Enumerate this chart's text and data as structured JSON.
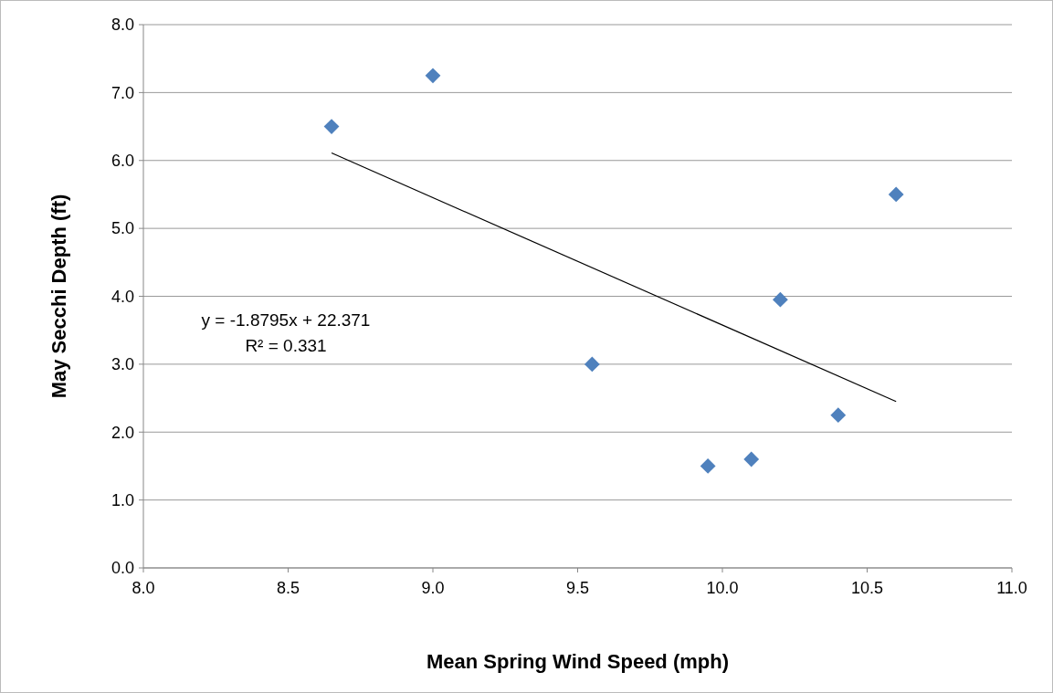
{
  "chart_data": {
    "type": "scatter",
    "xlabel": "Mean Spring Wind Speed (mph)",
    "ylabel": "May Secchi Depth (ft)",
    "xlim": [
      8,
      11
    ],
    "xticks": [
      {
        "value": 8,
        "label": "8.0"
      },
      {
        "value": 8.5,
        "label": "8.5"
      },
      {
        "value": 9,
        "label": "9.0"
      },
      {
        "value": 9.5,
        "label": "9.5"
      },
      {
        "value": 10,
        "label": "10.0"
      },
      {
        "value": 10.5,
        "label": "10.5"
      },
      {
        "value": 11,
        "label": "11.0"
      }
    ],
    "ylim": [
      0,
      8
    ],
    "yticks": [
      {
        "value": 0,
        "label": "0.0"
      },
      {
        "value": 1,
        "label": "1.0"
      },
      {
        "value": 2,
        "label": "2.0"
      },
      {
        "value": 3,
        "label": "3.0"
      },
      {
        "value": 4,
        "label": "4.0"
      },
      {
        "value": 5,
        "label": "5.0"
      },
      {
        "value": 6,
        "label": "6.0"
      },
      {
        "value": 7,
        "label": "7.0"
      },
      {
        "value": 8,
        "label": "8.0"
      }
    ],
    "grid": "y",
    "marker": "diamond",
    "series": [
      {
        "color": "#4f81bd",
        "x": [
          8.65,
          9.0,
          9.55,
          9.95,
          10.1,
          10.2,
          10.4,
          10.6
        ],
        "values": [
          6.5,
          7.25,
          3.0,
          1.5,
          1.6,
          3.95,
          2.25,
          5.5
        ]
      },
      {
        "type": "line",
        "color": "#000000",
        "marker": "none",
        "x": [
          8.65,
          10.6
        ],
        "values": [
          6.11,
          2.45
        ]
      }
    ],
    "annotations": [
      "y = -1.8795x + 22.371",
      "R² = 0.331"
    ]
  }
}
